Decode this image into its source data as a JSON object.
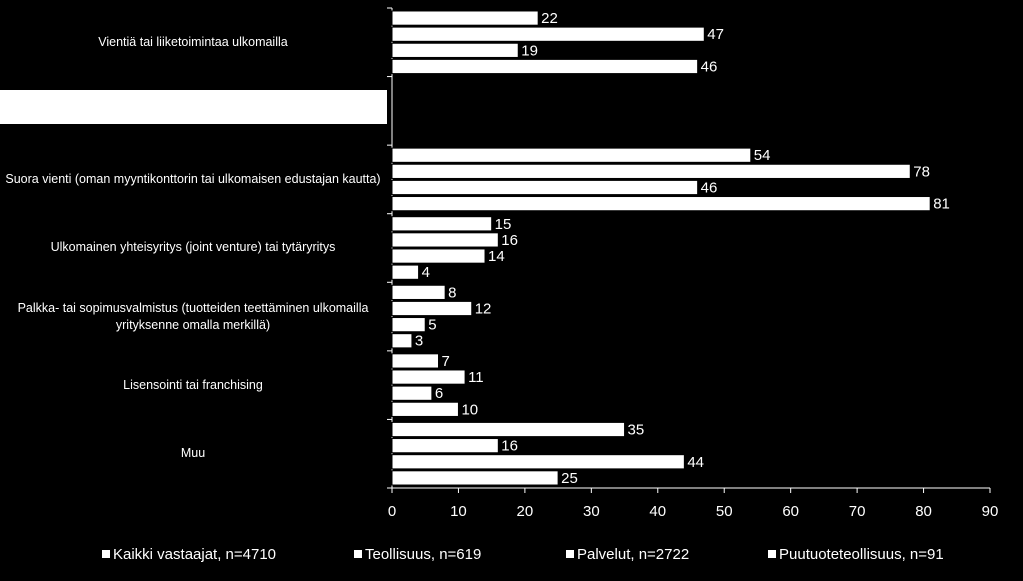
{
  "chart_data": {
    "type": "bar",
    "orientation": "horizontal",
    "categories": [
      "Vientiä tai liiketoimintaa ulkomailla",
      null,
      "Suora vienti (oman myyntikonttorin tai ulkomaisen edustajan kautta)",
      "Ulkomainen yhteisyritys (joint venture) tai tytäryritys",
      "Palkka- tai sopimusvalmistus (tuotteiden teettäminen ulkomailla yrityksenne omalla merkillä)",
      "Lisensointi tai franchising",
      "Muu"
    ],
    "series": [
      {
        "name": "Kaikki vastaajat, n=4710",
        "color": "#ffffff",
        "values": [
          22,
          null,
          54,
          15,
          8,
          7,
          35
        ]
      },
      {
        "name": "Teollisuus, n=619",
        "color": "#ffffff",
        "values": [
          47,
          null,
          78,
          16,
          12,
          11,
          16
        ]
      },
      {
        "name": "Palvelut, n=2722",
        "color": "#ffffff",
        "values": [
          19,
          null,
          46,
          14,
          5,
          6,
          44
        ]
      },
      {
        "name": "Puutuoteteollisuus, n=91",
        "color": "#ffffff",
        "values": [
          46,
          null,
          81,
          4,
          3,
          10,
          25
        ]
      }
    ],
    "xlim": [
      0,
      90
    ],
    "xticks": [
      0,
      10,
      20,
      30,
      40,
      50,
      60,
      70,
      80,
      90
    ],
    "legend": "bottom"
  }
}
